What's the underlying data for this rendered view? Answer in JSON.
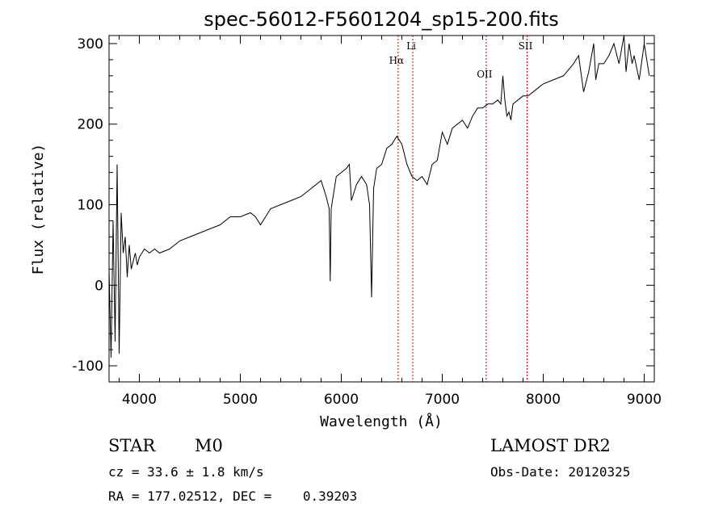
{
  "chart_data": {
    "type": "line",
    "title": "spec-56012-F5601204_sp15-200.fits",
    "xlabel": "Wavelength (Å)",
    "ylabel": "Flux (relative)",
    "xlim": [
      3700,
      9100
    ],
    "ylim": [
      -120,
      310
    ],
    "x_ticks": [
      4000,
      5000,
      6000,
      7000,
      8000,
      9000
    ],
    "y_ticks": [
      -100,
      0,
      100,
      200,
      300
    ],
    "grid": false,
    "line_color": "#000000",
    "marker_color": "#cc0000",
    "series": [
      {
        "x": [
          3700,
          3720,
          3740,
          3760,
          3780,
          3800,
          3820,
          3840,
          3860,
          3880,
          3900,
          3920,
          3940,
          3960,
          3980,
          4000,
          4050,
          4100,
          4150,
          4200,
          4300,
          4400,
          4500,
          4600,
          4700,
          4800,
          4900,
          5000,
          5100,
          5150,
          5200,
          5250,
          5300,
          5400,
          5500,
          5600,
          5700,
          5800,
          5850,
          5880,
          5890,
          5900,
          5950,
          6000,
          6050,
          6080,
          6100,
          6150,
          6200,
          6250,
          6280,
          6300,
          6320,
          6350,
          6400,
          6450,
          6500,
          6550,
          6600,
          6650,
          6700,
          6750,
          6800,
          6850,
          6900,
          6950,
          7000,
          7050,
          7100,
          7150,
          7200,
          7250,
          7300,
          7350,
          7400,
          7450,
          7500,
          7550,
          7580,
          7600,
          7620,
          7640,
          7660,
          7680,
          7700,
          7750,
          7800,
          7850,
          7900,
          7950,
          8000,
          8100,
          8200,
          8300,
          8350,
          8400,
          8450,
          8500,
          8520,
          8550,
          8600,
          8650,
          8700,
          8750,
          8800,
          8820,
          8850,
          8880,
          8900,
          8950,
          9000,
          9050
        ],
        "y": [
          20,
          -90,
          80,
          -70,
          150,
          -85,
          90,
          40,
          60,
          10,
          50,
          20,
          30,
          40,
          25,
          35,
          45,
          40,
          45,
          40,
          45,
          55,
          60,
          65,
          70,
          75,
          85,
          85,
          90,
          85,
          75,
          85,
          95,
          100,
          105,
          110,
          120,
          130,
          110,
          95,
          5,
          95,
          135,
          140,
          145,
          150,
          105,
          125,
          135,
          125,
          100,
          -15,
          120,
          145,
          150,
          170,
          175,
          185,
          175,
          150,
          135,
          130,
          135,
          125,
          150,
          155,
          190,
          175,
          195,
          200,
          205,
          195,
          210,
          220,
          220,
          225,
          225,
          230,
          225,
          260,
          230,
          210,
          215,
          205,
          225,
          230,
          235,
          235,
          240,
          245,
          250,
          255,
          260,
          275,
          285,
          240,
          265,
          300,
          255,
          275,
          275,
          285,
          300,
          275,
          310,
          265,
          300,
          275,
          285,
          255,
          300,
          260
        ]
      }
    ],
    "markers": [
      {
        "label": "Hα",
        "x": 6563
      },
      {
        "label": "Li",
        "x": 6708
      },
      {
        "label": "OII",
        "x": 7435
      },
      {
        "label": "SII",
        "x": 7840
      }
    ]
  },
  "info": {
    "object_type": "STAR",
    "subclass": "M0",
    "survey": "LAMOST DR2",
    "redshift": "cz = 33.6 ± 1.8 km/s",
    "obs_date": "Obs-Date: 20120325",
    "coordinates": "RA = 177.02512, DEC =    0.39203"
  }
}
